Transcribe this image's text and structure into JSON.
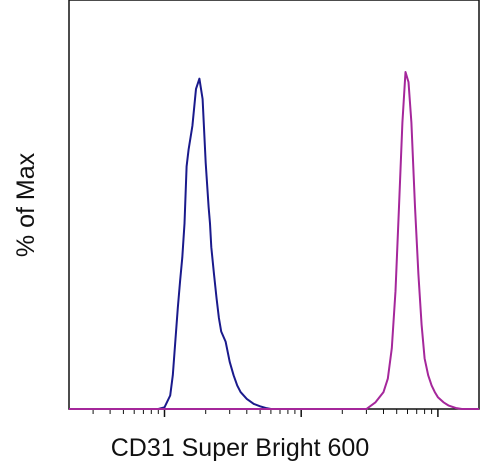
{
  "chart_data": {
    "type": "line",
    "title": "",
    "xlabel": "CD31 Super Bright 600",
    "ylabel": "% of Max",
    "xscale": "log",
    "grid": false,
    "legend": "none",
    "ylim": [
      0,
      100
    ],
    "series": [
      {
        "color": "#1a1a8c",
        "x": [
          0.09,
          0.1,
          0.11,
          0.115,
          0.12,
          0.125,
          0.13,
          0.135,
          0.14,
          0.145,
          0.15,
          0.16,
          0.17,
          0.18,
          0.19,
          0.2,
          0.21,
          0.215,
          0.22,
          0.23,
          0.24,
          0.25,
          0.26,
          0.28,
          0.3,
          0.32,
          0.34,
          0.36,
          0.4,
          0.45,
          0.5,
          0.55,
          0.6
        ],
        "y": [
          0,
          0.5,
          4,
          10,
          20,
          30,
          38,
          45,
          55,
          72,
          77,
          84,
          95,
          98,
          92,
          73,
          60,
          55,
          48,
          40,
          33,
          27,
          23,
          20,
          14,
          10,
          7,
          5,
          3,
          1.5,
          0.8,
          0.3,
          0
        ]
      },
      {
        "color": "#a5279b",
        "x": [
          3.0,
          3.5,
          4.0,
          4.3,
          4.6,
          4.9,
          5.2,
          5.5,
          5.8,
          6.1,
          6.4,
          6.8,
          7.2,
          7.6,
          8.0,
          8.5,
          9.0,
          9.5,
          10.0,
          11.0,
          12.0,
          13.5,
          15.0
        ],
        "y": [
          0,
          2,
          5,
          9,
          18,
          35,
          60,
          85,
          100,
          97,
          85,
          60,
          40,
          25,
          15,
          10,
          7,
          5,
          3.5,
          2,
          1,
          0.3,
          0
        ]
      }
    ]
  }
}
